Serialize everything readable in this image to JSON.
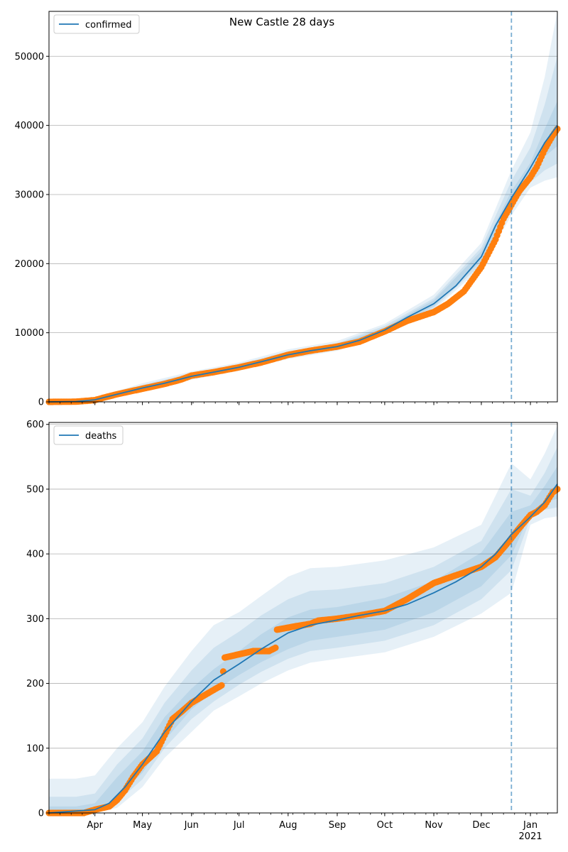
{
  "figure": {
    "title": "New Castle 28 days"
  },
  "colors": {
    "model": "#1f77b4",
    "observed": "#ff7f0e",
    "band": "#1f77b4",
    "grid": "#b0b0b0",
    "forecast_line": "#1f77b4"
  },
  "x_axis": {
    "range": [
      "2020-03-03",
      "2021-01-18"
    ],
    "month_ticks": [
      {
        "date": "2020-04-01",
        "label": "Apr"
      },
      {
        "date": "2020-05-01",
        "label": "May"
      },
      {
        "date": "2020-06-01",
        "label": "Jun"
      },
      {
        "date": "2020-07-01",
        "label": "Jul"
      },
      {
        "date": "2020-08-01",
        "label": "Aug"
      },
      {
        "date": "2020-09-01",
        "label": "Sep"
      },
      {
        "date": "2020-10-01",
        "label": "Oct"
      },
      {
        "date": "2020-11-01",
        "label": "Nov"
      },
      {
        "date": "2020-12-01",
        "label": "Dec"
      },
      {
        "date": "2021-01-01",
        "label": "Jan",
        "sublabel": "2021"
      }
    ],
    "forecast_start": "2020-12-20"
  },
  "chart_data": [
    {
      "type": "line",
      "legend": "confirmed",
      "legend_position": "top-left",
      "grid": "horizontal",
      "ylim": [
        0,
        56500
      ],
      "yticks": [
        0,
        10000,
        20000,
        30000,
        40000,
        50000
      ],
      "model": {
        "dates": [
          "2020-03-03",
          "2020-03-20",
          "2020-04-01",
          "2020-04-15",
          "2020-05-01",
          "2020-05-15",
          "2020-06-01",
          "2020-06-15",
          "2020-07-01",
          "2020-07-15",
          "2020-08-01",
          "2020-08-15",
          "2020-09-01",
          "2020-09-15",
          "2020-10-01",
          "2020-10-15",
          "2020-11-01",
          "2020-11-15",
          "2020-12-01",
          "2020-12-10",
          "2020-12-20",
          "2020-12-31",
          "2021-01-10",
          "2021-01-18"
        ],
        "values": [
          0,
          50,
          300,
          1100,
          2000,
          2700,
          3700,
          4300,
          5000,
          5800,
          6800,
          7400,
          8000,
          8900,
          10400,
          12200,
          14200,
          16800,
          21000,
          25500,
          29500,
          33500,
          37500,
          40000
        ]
      },
      "bands": [
        {
          "level": "outer",
          "dates": [
            "2020-03-03",
            "2020-04-01",
            "2020-05-01",
            "2020-06-01",
            "2020-07-01",
            "2020-08-01",
            "2020-09-01",
            "2020-10-01",
            "2020-11-01",
            "2020-12-01",
            "2020-12-20",
            "2021-01-01",
            "2021-01-10",
            "2021-01-18"
          ],
          "lower": [
            0,
            200,
            1500,
            3200,
            4500,
            6200,
            7400,
            9700,
            13300,
            19400,
            27000,
            31000,
            32000,
            32500
          ],
          "upper": [
            150,
            600,
            2700,
            4400,
            5700,
            7600,
            8800,
            11300,
            15500,
            23000,
            33500,
            39000,
            47000,
            56500
          ]
        },
        {
          "level": "middle",
          "dates": [
            "2020-03-03",
            "2020-04-01",
            "2020-05-01",
            "2020-06-01",
            "2020-07-01",
            "2020-08-01",
            "2020-09-01",
            "2020-10-01",
            "2020-11-01",
            "2020-12-01",
            "2020-12-20",
            "2021-01-01",
            "2021-01-10",
            "2021-01-18"
          ],
          "lower": [
            0,
            250,
            1650,
            3350,
            4650,
            6400,
            7600,
            9950,
            13600,
            19900,
            28000,
            31800,
            33500,
            34500
          ],
          "upper": [
            100,
            450,
            2450,
            4150,
            5450,
            7300,
            8500,
            11000,
            15000,
            22300,
            32000,
            36800,
            43000,
            50000
          ]
        },
        {
          "level": "inner",
          "dates": [
            "2020-03-03",
            "2020-04-01",
            "2020-05-01",
            "2020-06-01",
            "2020-07-01",
            "2020-08-01",
            "2020-09-01",
            "2020-10-01",
            "2020-11-01",
            "2020-12-01",
            "2020-12-20",
            "2021-01-01",
            "2021-01-10",
            "2021-01-18"
          ],
          "lower": [
            0,
            280,
            1800,
            3500,
            4800,
            6550,
            7750,
            10150,
            13850,
            20400,
            28800,
            32600,
            35500,
            37000
          ],
          "upper": [
            70,
            380,
            2250,
            3950,
            5250,
            7100,
            8300,
            10750,
            14700,
            21800,
            30500,
            34600,
            39500,
            43500
          ]
        }
      ],
      "observed": {
        "dates": [
          "2020-03-03",
          "2020-03-20",
          "2020-04-01",
          "2020-04-08",
          "2020-04-15",
          "2020-05-01",
          "2020-05-15",
          "2020-05-25",
          "2020-06-01",
          "2020-06-15",
          "2020-07-01",
          "2020-07-15",
          "2020-08-01",
          "2020-08-15",
          "2020-09-01",
          "2020-09-15",
          "2020-10-01",
          "2020-10-15",
          "2020-11-01",
          "2020-11-10",
          "2020-11-20",
          "2020-12-01",
          "2020-12-10",
          "2020-12-15",
          "2020-12-20",
          "2020-12-25",
          "2021-01-01",
          "2021-01-05",
          "2021-01-10",
          "2021-01-15",
          "2021-01-18"
        ],
        "values": [
          0,
          30,
          250,
          700,
          1100,
          1900,
          2600,
          3200,
          3800,
          4300,
          5000,
          5700,
          6800,
          7400,
          8000,
          8700,
          10200,
          11700,
          13000,
          14200,
          16000,
          19500,
          23500,
          26500,
          28500,
          30500,
          32500,
          34000,
          36500,
          38500,
          39500
        ]
      }
    },
    {
      "type": "line",
      "legend": "deaths",
      "legend_position": "top-left",
      "grid": "horizontal",
      "ylim": [
        0,
        603
      ],
      "yticks": [
        0,
        100,
        200,
        300,
        400,
        500,
        600
      ],
      "model": {
        "dates": [
          "2020-03-03",
          "2020-04-01",
          "2020-04-10",
          "2020-04-20",
          "2020-05-01",
          "2020-05-15",
          "2020-06-01",
          "2020-06-15",
          "2020-07-01",
          "2020-07-15",
          "2020-08-01",
          "2020-08-15",
          "2020-09-01",
          "2020-09-15",
          "2020-10-01",
          "2020-10-15",
          "2020-11-01",
          "2020-11-15",
          "2020-12-01",
          "2020-12-10",
          "2020-12-20",
          "2020-12-31",
          "2021-01-10",
          "2021-01-18"
        ],
        "values": [
          0,
          5,
          15,
          40,
          75,
          125,
          172,
          205,
          230,
          253,
          278,
          290,
          298,
          305,
          312,
          322,
          340,
          357,
          380,
          400,
          430,
          455,
          480,
          508
        ]
      },
      "bands": [
        {
          "level": "outer",
          "dates": [
            "2020-03-03",
            "2020-03-20",
            "2020-04-01",
            "2020-04-15",
            "2020-05-01",
            "2020-05-15",
            "2020-06-01",
            "2020-06-15",
            "2020-07-01",
            "2020-07-15",
            "2020-08-01",
            "2020-08-15",
            "2020-09-01",
            "2020-10-01",
            "2020-11-01",
            "2020-12-01",
            "2020-12-20",
            "2021-01-01",
            "2021-01-10",
            "2021-01-18"
          ],
          "lower": [
            0,
            0,
            0,
            8,
            40,
            85,
            125,
            158,
            180,
            200,
            220,
            232,
            238,
            248,
            272,
            308,
            340,
            445,
            455,
            458
          ],
          "upper": [
            53,
            53,
            58,
            100,
            140,
            195,
            250,
            290,
            310,
            335,
            365,
            378,
            380,
            390,
            410,
            445,
            540,
            515,
            555,
            598
          ]
        },
        {
          "level": "middle",
          "dates": [
            "2020-03-03",
            "2020-03-20",
            "2020-04-01",
            "2020-04-15",
            "2020-05-01",
            "2020-05-15",
            "2020-06-01",
            "2020-06-15",
            "2020-07-01",
            "2020-07-15",
            "2020-08-01",
            "2020-08-15",
            "2020-09-01",
            "2020-10-01",
            "2020-11-01",
            "2020-12-01",
            "2020-12-20",
            "2021-01-01",
            "2021-01-10",
            "2021-01-18"
          ],
          "lower": [
            0,
            0,
            1,
            17,
            52,
            100,
            145,
            172,
            198,
            218,
            238,
            250,
            255,
            266,
            290,
            330,
            375,
            455,
            468,
            472
          ],
          "upper": [
            25,
            25,
            30,
            75,
            115,
            170,
            220,
            255,
            280,
            305,
            330,
            343,
            345,
            355,
            380,
            420,
            500,
            490,
            525,
            565
          ]
        },
        {
          "level": "inner",
          "dates": [
            "2020-03-03",
            "2020-03-20",
            "2020-04-01",
            "2020-04-15",
            "2020-05-01",
            "2020-05-15",
            "2020-06-01",
            "2020-06-15",
            "2020-07-01",
            "2020-07-15",
            "2020-08-01",
            "2020-08-15",
            "2020-09-01",
            "2020-10-01",
            "2020-11-01",
            "2020-12-01",
            "2020-12-20",
            "2021-01-01",
            "2021-01-10",
            "2021-01-18"
          ],
          "lower": [
            0,
            0,
            2,
            25,
            62,
            112,
            160,
            188,
            213,
            233,
            253,
            266,
            272,
            283,
            310,
            350,
            398,
            462,
            480,
            485
          ],
          "upper": [
            10,
            10,
            15,
            55,
            95,
            148,
            192,
            222,
            250,
            276,
            302,
            314,
            318,
            332,
            358,
            402,
            465,
            475,
            505,
            535
          ]
        }
      ],
      "observed": {
        "dates": [
          "2020-03-03",
          "2020-03-25",
          "2020-04-01",
          "2020-04-10",
          "2020-04-15",
          "2020-04-20",
          "2020-04-25",
          "2020-05-01",
          "2020-05-10",
          "2020-05-15",
          "2020-05-20",
          "2020-05-25",
          "2020-06-01",
          "2020-06-08",
          "2020-06-15",
          "2020-06-20",
          "2020-06-22",
          "2020-07-01",
          "2020-07-10",
          "2020-07-20",
          "2020-07-24",
          "2020-07-25",
          "2020-08-05",
          "2020-08-15",
          "2020-08-20",
          "2020-09-01",
          "2020-09-15",
          "2020-10-01",
          "2020-10-15",
          "2020-11-01",
          "2020-11-15",
          "2020-12-01",
          "2020-12-10",
          "2020-12-18",
          "2020-12-25",
          "2021-01-01",
          "2021-01-05",
          "2021-01-10",
          "2021-01-15",
          "2021-01-18"
        ],
        "values": [
          0,
          0,
          5,
          10,
          20,
          35,
          55,
          75,
          95,
          120,
          145,
          155,
          170,
          180,
          190,
          197,
          240,
          245,
          250,
          250,
          255,
          283,
          288,
          292,
          297,
          300,
          305,
          312,
          330,
          355,
          367,
          380,
          395,
          418,
          440,
          460,
          465,
          475,
          495,
          500
        ]
      }
    }
  ]
}
